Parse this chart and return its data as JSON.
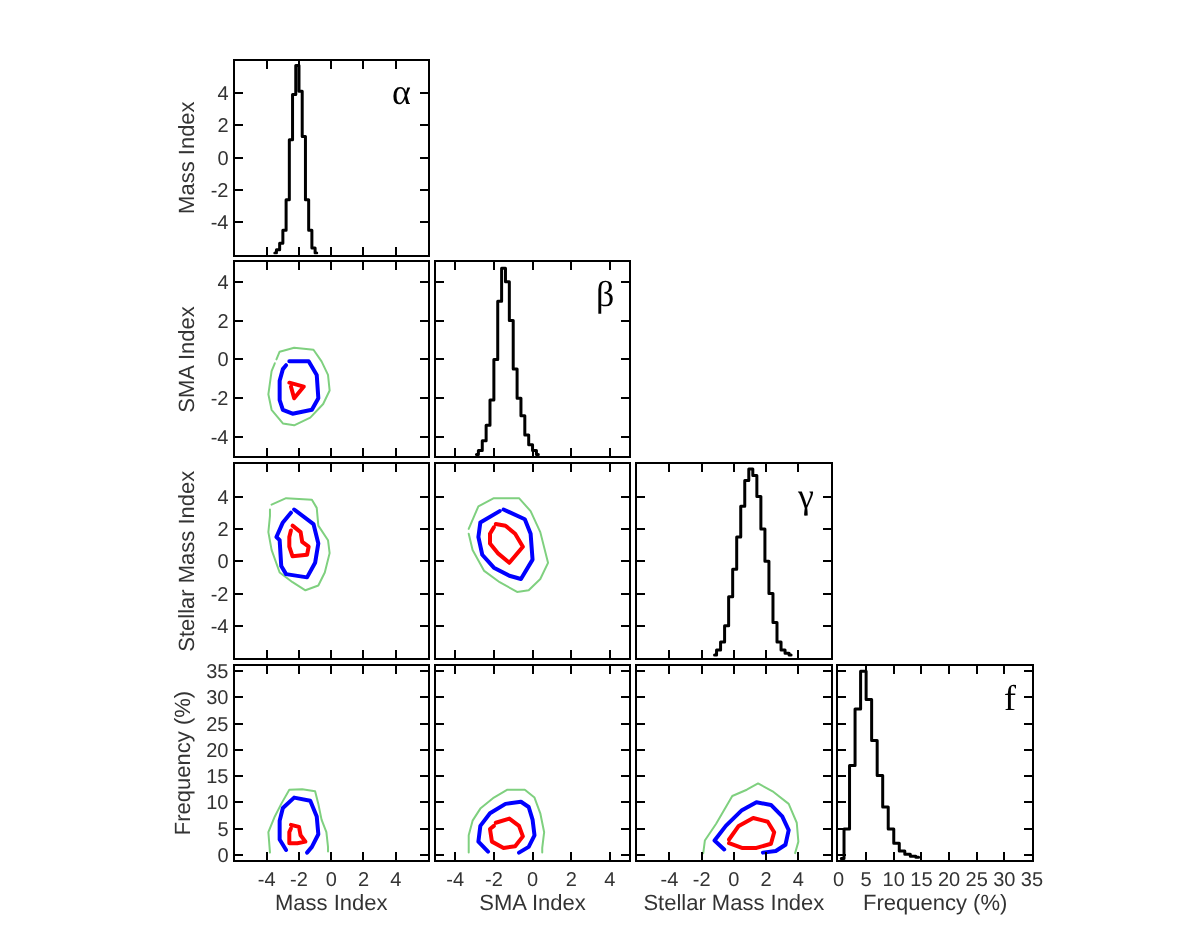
{
  "chart_data": [
    {
      "type": "step",
      "title": "α",
      "x": [
        -3.5,
        -3.3,
        -3.1,
        -2.9,
        -2.7,
        -2.5,
        -2.3,
        -2.1,
        -1.9,
        -1.7,
        -1.5,
        -1.3,
        -1.1,
        -0.9
      ],
      "values": [
        -5.9,
        -5.7,
        -5.3,
        -4.5,
        -2.6,
        1.1,
        3.9,
        5.7,
        4.1,
        1.3,
        -2.6,
        -4.5,
        -5.6,
        -5.9
      ],
      "color": "#000000",
      "xlim": [
        -6,
        6
      ],
      "ylim": [
        -6,
        6
      ],
      "xticks": [
        -4,
        -2,
        0,
        2,
        4
      ],
      "yticks": [
        -4,
        -2,
        0,
        2,
        4
      ],
      "ylabel": "Mass Index",
      "tick_labels": "y"
    },
    {
      "type": "line",
      "xlim": [
        -6,
        6
      ],
      "ylim": [
        -5,
        5
      ],
      "xticks": [
        -4,
        -2,
        0,
        2,
        4
      ],
      "yticks": [
        -4,
        -2,
        0,
        2,
        4
      ],
      "ylabel": "SMA Index",
      "tick_labels": "y",
      "series": [
        {
          "color": "#7fd07f",
          "x": [
            -3.4,
            -3.2,
            -2.3,
            -1.1,
            -0.6,
            -0.2,
            -0.1,
            -0.5,
            -1.3,
            -2.3,
            -3.0,
            -3.7,
            -3.9,
            -3.7,
            -3.5
          ],
          "values": [
            0.0,
            0.4,
            0.6,
            0.5,
            -0.1,
            -0.8,
            -1.6,
            -2.3,
            -3.0,
            -3.4,
            -3.3,
            -2.6,
            -1.8,
            -0.6,
            -0.2
          ]
        },
        {
          "color": "#0000ff",
          "x": [
            -2.6,
            -1.4,
            -0.9,
            -0.8,
            -1.2,
            -2.4,
            -3.0,
            -3.2,
            -3.2,
            -3.0,
            -2.8
          ],
          "values": [
            -0.1,
            -0.1,
            -0.8,
            -2.0,
            -2.6,
            -2.8,
            -2.6,
            -2.1,
            -1.1,
            -0.5,
            -0.3
          ]
        },
        {
          "color": "#ff0000",
          "x": [
            -2.6,
            -1.7,
            -2.3,
            -2.5
          ],
          "values": [
            -1.2,
            -1.4,
            -2.0,
            -1.4
          ]
        }
      ]
    },
    {
      "type": "step",
      "title": "β",
      "x": [
        -2.9,
        -2.7,
        -2.5,
        -2.3,
        -2.1,
        -1.9,
        -1.7,
        -1.5,
        -1.3,
        -1.1,
        -0.9,
        -0.7,
        -0.5,
        -0.3,
        -0.1,
        0.1,
        0.3
      ],
      "values": [
        -4.9,
        -4.7,
        -4.2,
        -3.4,
        -2.1,
        0.0,
        3.0,
        4.7,
        4.0,
        2.0,
        -0.5,
        -2.0,
        -2.9,
        -3.9,
        -4.4,
        -4.7,
        -4.9
      ],
      "color": "#000000",
      "xlim": [
        -5,
        5
      ],
      "ylim": [
        -5,
        5
      ],
      "xticks": [
        -4,
        -2,
        0,
        2,
        4
      ],
      "yticks": [
        -4,
        -2,
        0,
        2,
        4
      ],
      "tick_labels": false
    },
    {
      "type": "line",
      "xlim": [
        -6,
        6
      ],
      "ylim": [
        -6,
        6
      ],
      "xticks": [
        -4,
        -2,
        0,
        2,
        4
      ],
      "yticks": [
        -4,
        -2,
        0,
        2,
        4
      ],
      "ylabel": "Stellar Mass Index",
      "tick_labels": "y",
      "series": [
        {
          "color": "#7fd07f",
          "x": [
            -3.7,
            -2.8,
            -1.2,
            -0.9,
            -0.8,
            -0.2,
            -0.1,
            -0.4,
            -0.8,
            -1.6,
            -2.4,
            -3.2,
            -3.7,
            -3.9,
            -3.8,
            -3.8
          ],
          "values": [
            3.5,
            3.9,
            3.8,
            3.3,
            2.2,
            1.3,
            0.5,
            -0.7,
            -1.5,
            -1.8,
            -1.3,
            -0.7,
            0.7,
            1.8,
            2.8,
            3.2
          ]
        },
        {
          "color": "#0000ff",
          "x": [
            -2.3,
            -1.1,
            -0.8,
            -1.0,
            -1.5,
            -2.8,
            -3.1,
            -3.2,
            -3.4,
            -3.0,
            -2.5
          ],
          "values": [
            3.2,
            2.3,
            1.1,
            -0.1,
            -1.0,
            -0.8,
            -0.3,
            1.3,
            1.5,
            2.4,
            3.0
          ]
        },
        {
          "color": "#ff0000",
          "x": [
            -2.4,
            -1.9,
            -1.8,
            -1.4,
            -1.5,
            -2.4,
            -2.6,
            -2.6,
            -2.5
          ],
          "values": [
            2.2,
            1.8,
            1.2,
            0.9,
            0.4,
            0.3,
            0.9,
            1.5,
            1.9
          ]
        }
      ]
    },
    {
      "type": "line",
      "xlim": [
        -5,
        5
      ],
      "ylim": [
        -6,
        6
      ],
      "xticks": [
        -4,
        -2,
        0,
        2,
        4
      ],
      "yticks": [
        -4,
        -2,
        0,
        2,
        4
      ],
      "tick_labels": false,
      "series": [
        {
          "color": "#7fd07f",
          "x": [
            -3.3,
            -2.8,
            -2.0,
            -0.7,
            -0.1,
            0.4,
            0.8,
            0.4,
            -0.2,
            -0.8,
            -1.7,
            -2.5,
            -3.1,
            -3.3
          ],
          "values": [
            2.0,
            3.4,
            3.9,
            3.9,
            3.1,
            1.8,
            -0.1,
            -1.1,
            -1.8,
            -1.9,
            -1.3,
            -0.6,
            0.7,
            1.7
          ]
        },
        {
          "color": "#0000ff",
          "x": [
            -1.5,
            -0.4,
            -0.1,
            0.0,
            -0.6,
            -1.2,
            -2.0,
            -2.6,
            -2.8,
            -2.7,
            -1.7
          ],
          "values": [
            3.2,
            2.6,
            1.7,
            0.1,
            -1.1,
            -0.9,
            -0.4,
            0.4,
            1.5,
            2.4,
            3.1
          ]
        },
        {
          "color": "#ff0000",
          "x": [
            -1.9,
            -1.4,
            -0.9,
            -0.5,
            -1.2,
            -1.8,
            -2.2,
            -2.2,
            -2.0
          ],
          "values": [
            2.3,
            2.2,
            1.7,
            0.9,
            -0.1,
            0.5,
            1.1,
            1.7,
            2.1
          ]
        }
      ]
    },
    {
      "type": "step",
      "title": "γ",
      "x": [
        -1.2,
        -0.95,
        -0.7,
        -0.45,
        -0.2,
        0.05,
        0.3,
        0.55,
        0.8,
        1.05,
        1.3,
        1.55,
        1.8,
        2.05,
        2.3,
        2.55,
        2.8,
        3.05,
        3.3,
        3.55
      ],
      "values": [
        -5.8,
        -5.5,
        -5.0,
        -4.0,
        -2.2,
        -0.5,
        1.5,
        3.4,
        5.0,
        5.7,
        5.3,
        4.0,
        2.0,
        0.0,
        -2.0,
        -3.8,
        -5.0,
        -5.5,
        -5.7,
        -5.8
      ],
      "color": "#000000",
      "xlim": [
        -6,
        6
      ],
      "ylim": [
        -6,
        6
      ],
      "xticks": [
        -4,
        -2,
        0,
        2,
        4
      ],
      "yticks": [
        -4,
        -2,
        0,
        2,
        4
      ],
      "tick_labels": false
    },
    {
      "type": "line",
      "xlim": [
        -6,
        6
      ],
      "ylim": [
        -1,
        36
      ],
      "xticks": [
        -4,
        -2,
        0,
        2,
        4
      ],
      "yticks": [
        0,
        5,
        10,
        15,
        20,
        25,
        30,
        35
      ],
      "xlabel": "Mass Index",
      "ylabel": "Frequency (%)",
      "series": [
        {
          "color": "#7fd07f",
          "x": [
            -3.8,
            -3.9,
            -3.5,
            -3.1,
            -2.6,
            -1.8,
            -1.0,
            -0.8,
            -0.6,
            -0.3,
            -0.2,
            -0.2
          ],
          "values": [
            0.4,
            4.3,
            7.3,
            9.7,
            12.4,
            12.5,
            12.1,
            9.7,
            6.7,
            4.3,
            1.5,
            0.6
          ]
        },
        {
          "color": "#0000ff",
          "x": [
            -2.8,
            -3.2,
            -3.2,
            -3.0,
            -2.3,
            -1.3,
            -0.9,
            -0.8,
            -1.2,
            -1.5
          ],
          "values": [
            0.9,
            2.9,
            6.5,
            8.9,
            10.9,
            10.3,
            7.3,
            3.9,
            1.5,
            0.4
          ]
        },
        {
          "color": "#ff0000",
          "x": [
            -2.5,
            -2.0,
            -1.9,
            -1.6,
            -2.1,
            -2.6,
            -2.6,
            -2.5
          ],
          "values": [
            5.7,
            5.3,
            3.7,
            2.5,
            2.2,
            2.2,
            4.3,
            5.0
          ]
        }
      ]
    },
    {
      "type": "line",
      "xlim": [
        -5,
        5
      ],
      "ylim": [
        -1,
        36
      ],
      "xticks": [
        -4,
        -2,
        0,
        2,
        4
      ],
      "yticks": [
        0,
        5,
        10,
        15,
        20,
        25,
        30,
        35
      ],
      "xlabel": "SMA Index",
      "tick_labels": "x",
      "series": [
        {
          "color": "#7fd07f",
          "x": [
            -3.3,
            -3.3,
            -3.1,
            -2.7,
            -2.0,
            -1.3,
            -0.4,
            0.1,
            0.4,
            0.6,
            0.5,
            0.5
          ],
          "values": [
            0.4,
            3.7,
            6.5,
            8.8,
            10.9,
            12.4,
            12.4,
            10.9,
            7.9,
            4.3,
            1.3,
            0.4
          ]
        },
        {
          "color": "#0000ff",
          "x": [
            -2.3,
            -2.8,
            -2.7,
            -2.2,
            -1.4,
            -0.6,
            -0.2,
            0.0,
            0.1,
            -0.2,
            -0.7
          ],
          "values": [
            0.6,
            2.5,
            5.5,
            7.9,
            9.7,
            10.1,
            9.1,
            6.7,
            3.7,
            1.5,
            0.4
          ]
        },
        {
          "color": "#ff0000",
          "x": [
            -1.9,
            -1.2,
            -0.7,
            -0.5,
            -0.9,
            -1.5,
            -2.1,
            -2.2,
            -2.0
          ],
          "values": [
            6.1,
            6.9,
            5.5,
            3.5,
            1.6,
            1.3,
            2.5,
            4.9,
            5.5
          ]
        }
      ]
    },
    {
      "type": "line",
      "xlim": [
        -6,
        6
      ],
      "ylim": [
        -1,
        36
      ],
      "xticks": [
        -4,
        -2,
        0,
        2,
        4
      ],
      "yticks": [
        0,
        5,
        10,
        15,
        20,
        25,
        30,
        35
      ],
      "xlabel": "Stellar Mass Index",
      "tick_labels": "x",
      "series": [
        {
          "color": "#7fd07f",
          "x": [
            -1.9,
            -1.8,
            -1.1,
            -0.1,
            0.8,
            1.5,
            2.4,
            3.4,
            3.9,
            4.0,
            3.8
          ],
          "values": [
            0.3,
            2.7,
            5.9,
            11.2,
            12.4,
            13.6,
            12.1,
            9.7,
            6.1,
            2.5,
            0.3
          ]
        },
        {
          "color": "#0000ff",
          "x": [
            -0.6,
            -1.2,
            -0.5,
            0.5,
            1.4,
            2.3,
            3.0,
            3.4,
            3.2,
            2.6,
            1.8
          ],
          "values": [
            1.0,
            2.7,
            5.5,
            8.5,
            10.0,
            9.5,
            7.3,
            4.7,
            1.9,
            0.7,
            0.4
          ]
        },
        {
          "color": "#ff0000",
          "x": [
            -0.3,
            0.3,
            1.2,
            2.1,
            2.5,
            2.3,
            1.4,
            0.5,
            -0.3
          ],
          "values": [
            2.9,
            5.5,
            7.0,
            6.3,
            4.3,
            2.1,
            1.3,
            1.3,
            2.2
          ]
        }
      ]
    },
    {
      "type": "step",
      "title": "f",
      "x": [
        0.5,
        1.5,
        2.5,
        3.5,
        4.5,
        5.5,
        6.5,
        7.5,
        8.5,
        9.5,
        10.5,
        11.5,
        12.5,
        13.5,
        14.5
      ],
      "values": [
        -0.7,
        4.9,
        17.0,
        27.8,
        35.0,
        29.6,
        21.8,
        15.1,
        9.1,
        4.9,
        2.2,
        0.7,
        0.1,
        -0.3,
        -0.5
      ],
      "color": "#000000",
      "xlim": [
        0,
        35
      ],
      "ylim": [
        -1,
        36
      ],
      "xticks": [
        0,
        5,
        10,
        15,
        20,
        25,
        30,
        35
      ],
      "yticks": [
        0,
        5,
        10,
        15,
        20,
        25,
        30,
        35
      ],
      "xlabel": "Frequency (%)",
      "tick_labels": "x"
    }
  ]
}
